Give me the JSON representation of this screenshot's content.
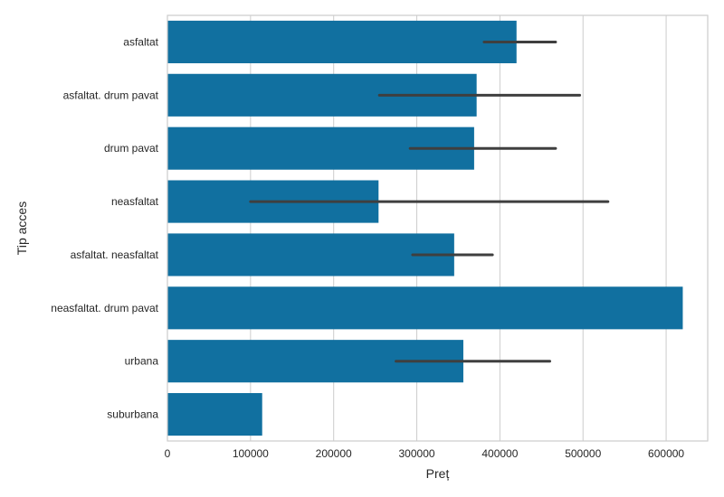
{
  "chart_data": {
    "type": "bar",
    "orientation": "horizontal",
    "title": "",
    "xlabel": "Preț",
    "ylabel": "Tip acces",
    "xlim": [
      0,
      650000
    ],
    "xticks": [
      0,
      100000,
      200000,
      300000,
      400000,
      500000,
      600000
    ],
    "xtick_labels": [
      "0",
      "100000",
      "200000",
      "300000",
      "400000",
      "500000",
      "600000"
    ],
    "grid": true,
    "bar_color": "#1170a0",
    "errorbar_color": "#3f3f3f",
    "categories": [
      "asfaltat",
      "asfaltat. drum pavat",
      "drum pavat",
      "neasfaltat",
      "asfaltat. neasfaltat",
      "neasfaltat. drum pavat",
      "urbana",
      "suburbana"
    ],
    "values": [
      420000,
      372000,
      369000,
      254000,
      345000,
      620000,
      356000,
      114000
    ],
    "error_low": [
      381000,
      255000,
      292000,
      100000,
      295000,
      null,
      275000,
      null
    ],
    "error_high": [
      467000,
      496000,
      467000,
      530000,
      391000,
      null,
      460000,
      null
    ]
  }
}
